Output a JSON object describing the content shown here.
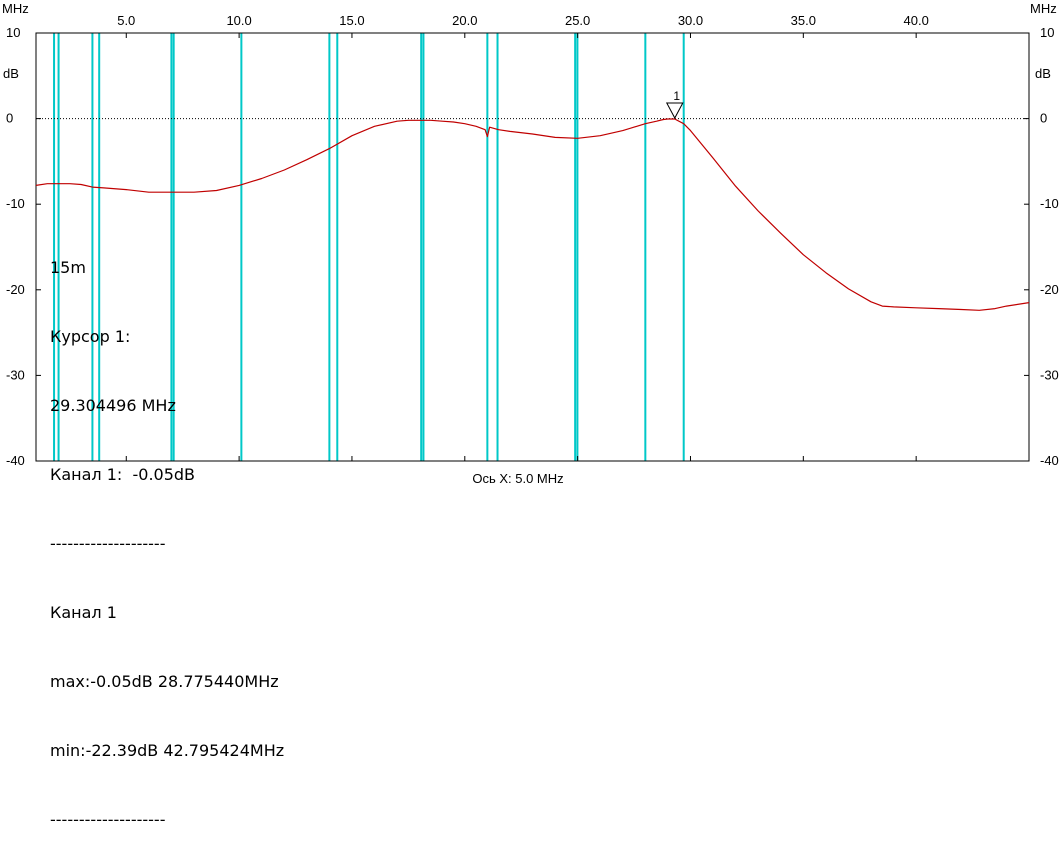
{
  "chart_data": {
    "type": "line",
    "title": "",
    "x_unit_label": "MHz",
    "y_unit_label": "dB",
    "xlabel": "Ось X: 5.0 MHz",
    "xlim": [
      1.0,
      45.0
    ],
    "ylim": [
      -40,
      10
    ],
    "x_ticks": [
      5.0,
      10.0,
      15.0,
      20.0,
      25.0,
      30.0,
      35.0,
      40.0
    ],
    "x_tick_labels": [
      "5.0",
      "10.0",
      "15.0",
      "20.0",
      "25.0",
      "30.0",
      "35.0",
      "40.0"
    ],
    "y_ticks": [
      10,
      0,
      -10,
      -20,
      -30,
      -40
    ],
    "y_tick_labels": [
      "10",
      "0",
      "-10",
      "-20",
      "-30",
      "-40"
    ],
    "grid": "none",
    "reference_line_db": 0,
    "band_markers_mhz": [
      1.8,
      2.0,
      3.5,
      3.8,
      7.0,
      7.1,
      10.1,
      14.0,
      14.35,
      18.068,
      18.168,
      21.0,
      21.45,
      24.89,
      24.99,
      28.0,
      29.7
    ],
    "series": [
      {
        "color": "#c00000",
        "x": [
          1.0,
          1.5,
          2.0,
          2.5,
          3.0,
          3.5,
          4.0,
          5.0,
          6.0,
          7.0,
          8.0,
          9.0,
          10.0,
          11.0,
          12.0,
          13.0,
          14.0,
          15.0,
          16.0,
          17.0,
          17.5,
          18.0,
          18.5,
          19.0,
          19.5,
          20.0,
          20.5,
          20.9,
          21.0,
          21.1,
          21.5,
          22.0,
          23.0,
          24.0,
          25.0,
          26.0,
          27.0,
          28.0,
          28.5,
          28.8,
          29.0,
          29.3,
          29.7,
          30.0,
          31.0,
          32.0,
          33.0,
          34.0,
          35.0,
          36.0,
          37.0,
          38.0,
          38.5,
          39.0,
          40.0,
          41.0,
          42.0,
          42.8,
          43.5,
          44.0,
          45.0
        ],
        "y": [
          -7.8,
          -7.6,
          -7.6,
          -7.6,
          -7.7,
          -8.0,
          -8.1,
          -8.3,
          -8.6,
          -8.6,
          -8.6,
          -8.4,
          -7.8,
          -7.0,
          -6.0,
          -4.8,
          -3.5,
          -2.0,
          -0.9,
          -0.3,
          -0.2,
          -0.2,
          -0.2,
          -0.3,
          -0.4,
          -0.6,
          -0.9,
          -1.3,
          -2.1,
          -1.0,
          -1.3,
          -1.5,
          -1.8,
          -2.2,
          -2.3,
          -2.0,
          -1.4,
          -0.6,
          -0.3,
          -0.1,
          -0.05,
          -0.05,
          -0.6,
          -1.4,
          -4.6,
          -7.9,
          -10.8,
          -13.4,
          -15.9,
          -18.0,
          -19.9,
          -21.4,
          -21.9,
          -22.0,
          -22.1,
          -22.2,
          -22.3,
          -22.39,
          -22.2,
          -21.9,
          -21.5
        ]
      }
    ],
    "marker": {
      "label": "1",
      "x": 29.304496,
      "y": -0.05
    }
  },
  "info": {
    "line1": "15m",
    "line2": "Курсор 1:",
    "line3": "29.304496 MHz",
    "line4": "Канал 1:  -0.05dB",
    "line5": "--------------------",
    "line6": "Канал 1",
    "line7": "max:-0.05dB 28.775440MHz",
    "line8": "min:-22.39dB 42.795424MHz",
    "line9": "--------------------"
  },
  "colors": {
    "trace": "#c00000",
    "band": "#00c8c8",
    "frame": "#000000"
  }
}
